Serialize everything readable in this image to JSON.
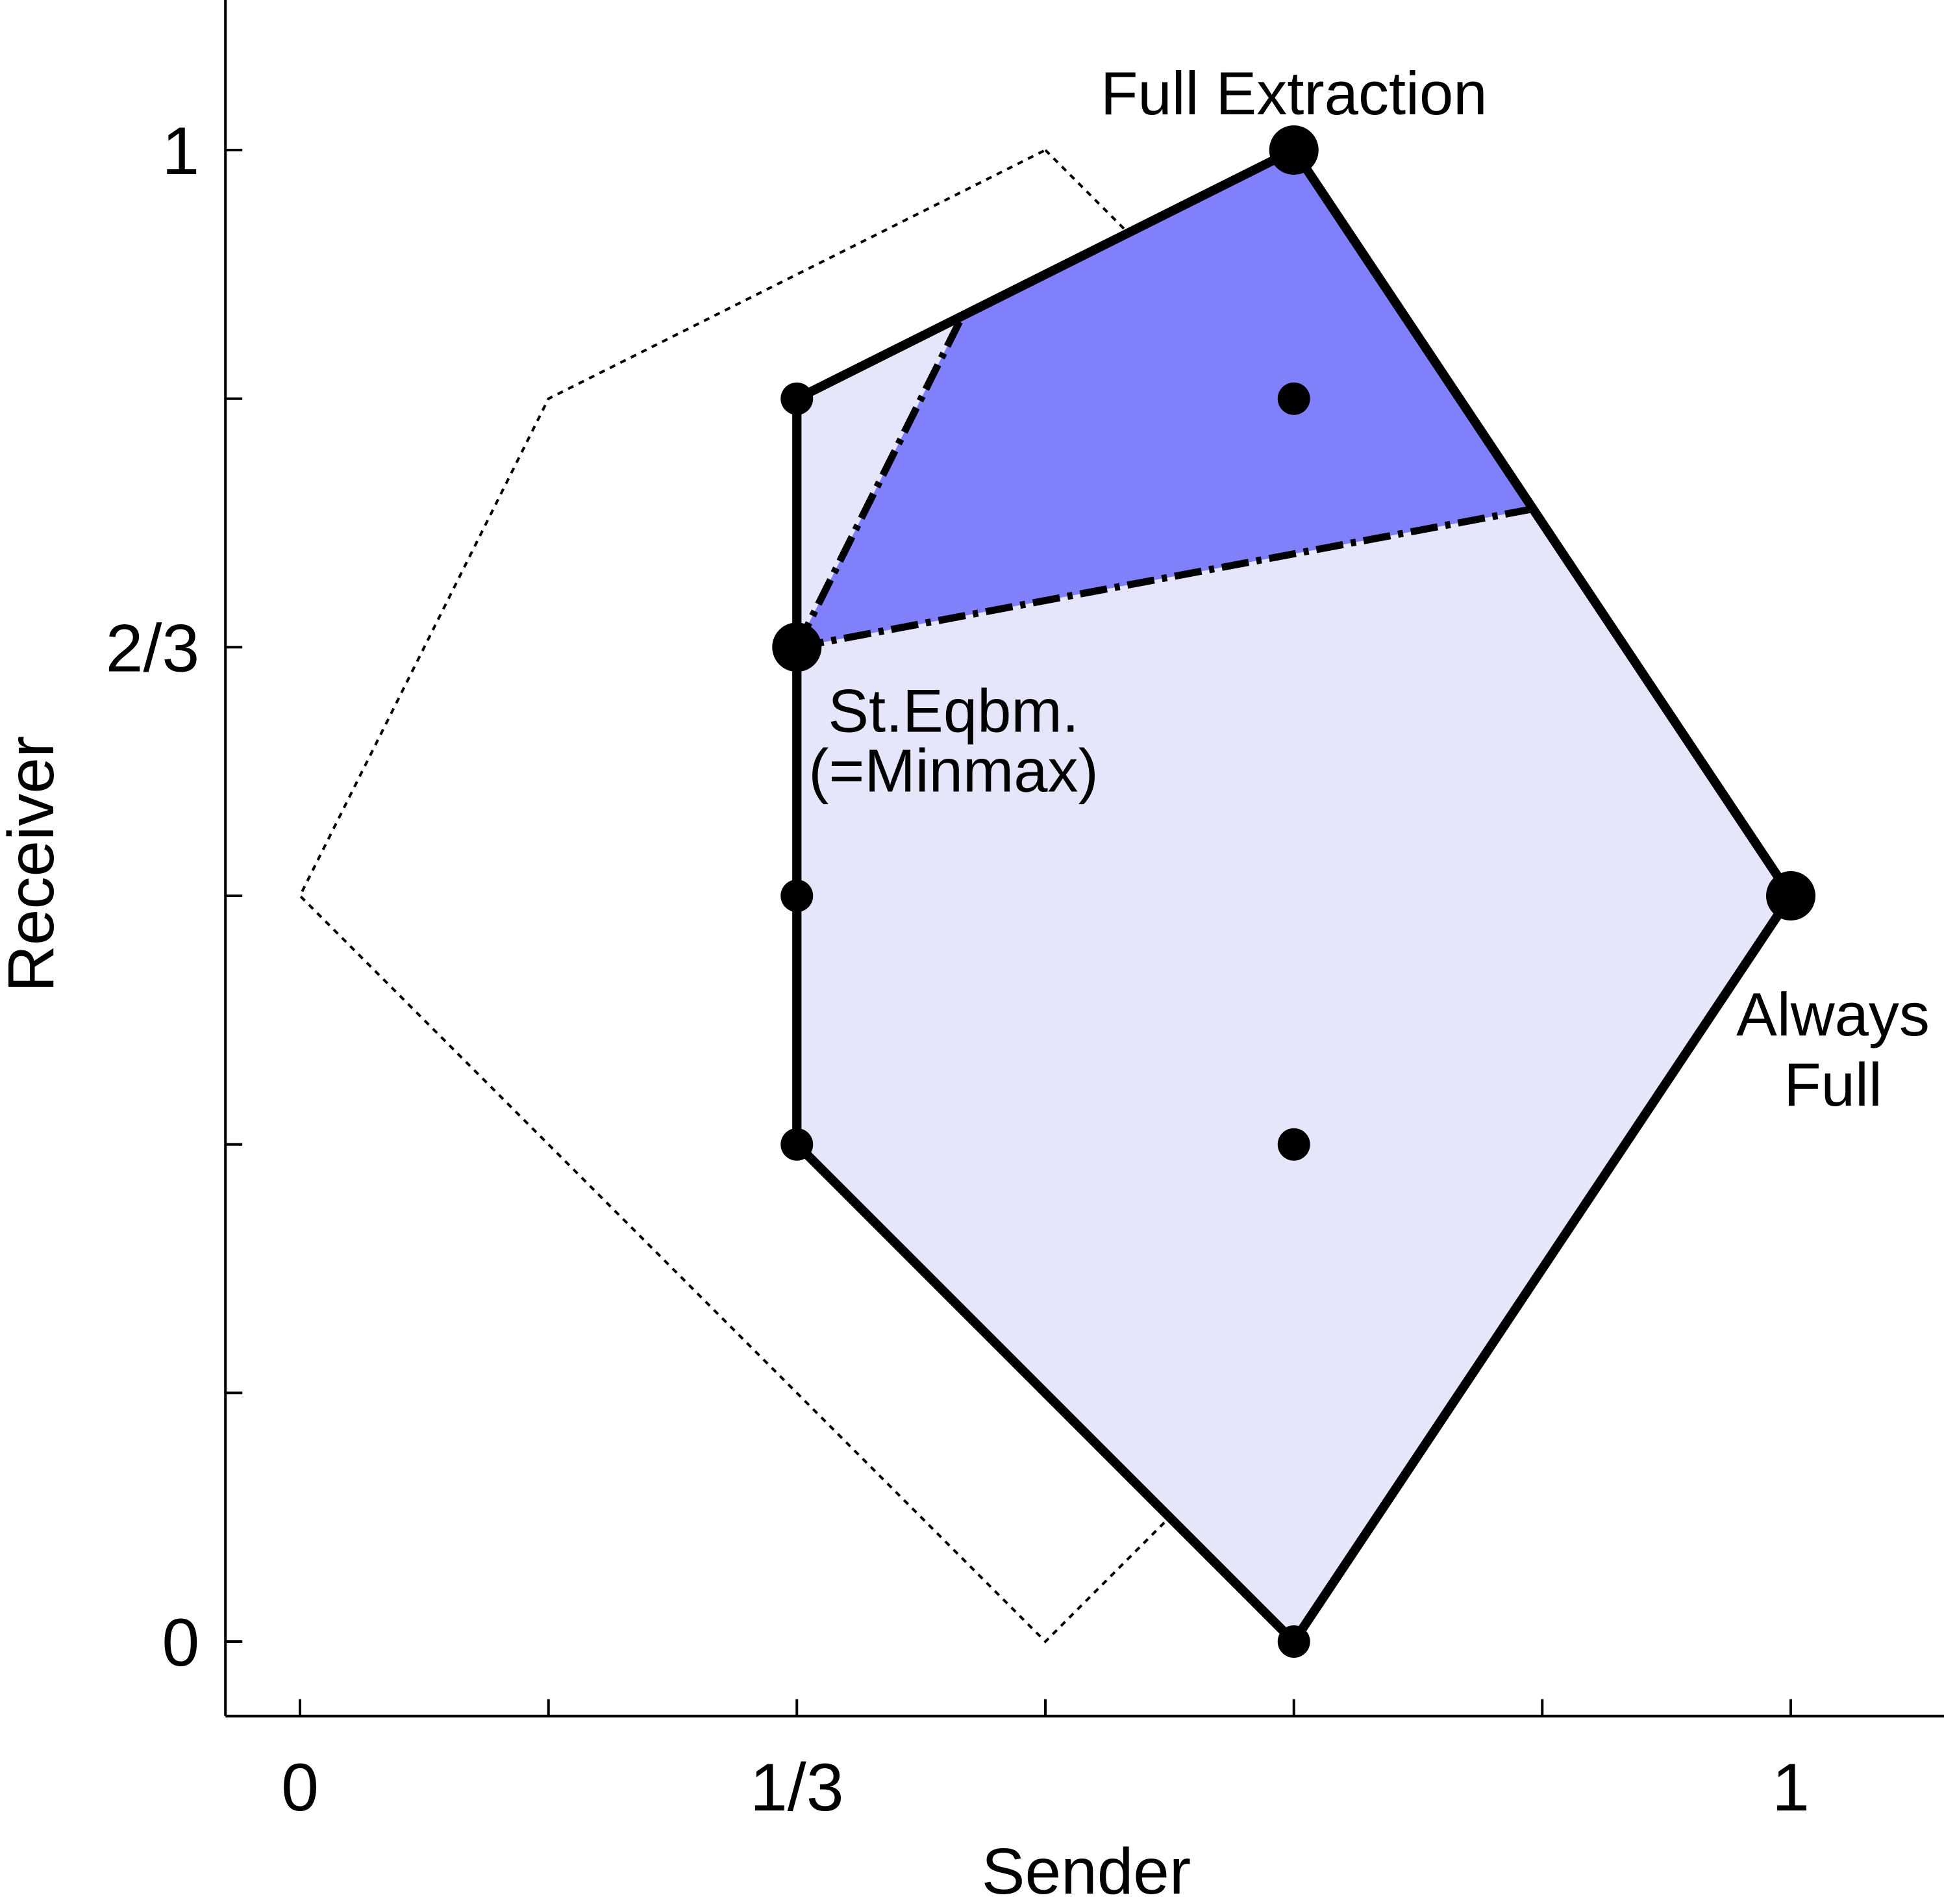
{
  "chart_data": {
    "type": "scatter",
    "xlabel": "Sender",
    "ylabel": "Receiver",
    "xlim": [
      -0.05,
      1.1
    ],
    "ylim": [
      -0.05,
      1.1
    ],
    "x_ticks": [
      0,
      0.1667,
      0.3333,
      0.5,
      0.6667,
      0.8333,
      1
    ],
    "x_tick_labels": [
      "0",
      "",
      "1/3",
      "",
      "",
      "",
      "1"
    ],
    "y_ticks": [
      0,
      0.1667,
      0.3333,
      0.5,
      0.6667,
      0.8333,
      1
    ],
    "y_tick_labels": [
      "0",
      "",
      "",
      "",
      "2/3",
      "",
      "1"
    ],
    "grid": false,
    "colors": {
      "light_fill": "#e6e6fb",
      "dark_fill": "#8080fb",
      "stroke": "#000000"
    },
    "polygons": [
      {
        "kind": "dotted-outline",
        "points": [
          [
            0.5,
            1
          ],
          [
            1,
            0.5
          ],
          [
            0.5,
            0
          ],
          [
            0,
            0.5
          ],
          [
            0.1667,
            0.8333
          ]
        ]
      },
      {
        "kind": "light-filled-region",
        "points": [
          [
            0.6667,
            1
          ],
          [
            1,
            0.5
          ],
          [
            0.6667,
            0
          ],
          [
            0.3333,
            0.3333
          ],
          [
            0.3333,
            0.8333
          ]
        ]
      },
      {
        "kind": "dark-filled-region",
        "points": [
          [
            0.3333,
            0.6667
          ],
          [
            0.4444,
            0.8889
          ],
          [
            0.6667,
            1
          ],
          [
            0.8271,
            0.7594
          ]
        ]
      }
    ],
    "dashdot_lines": [
      [
        [
          0.3333,
          0.6667
        ],
        [
          0.4444,
          0.8889
        ]
      ],
      [
        [
          0.3333,
          0.6667
        ],
        [
          0.8271,
          0.7594
        ]
      ]
    ],
    "points_small": [
      [
        0.3333,
        0.8333
      ],
      [
        0.6667,
        0.8333
      ],
      [
        0.3333,
        0.5
      ],
      [
        0.3333,
        0.3333
      ],
      [
        0.6667,
        0.3333
      ],
      [
        0.6667,
        0
      ]
    ],
    "points_large": [
      [
        0.6667,
        1
      ],
      [
        0.3333,
        0.6667
      ],
      [
        1,
        0.5
      ]
    ],
    "annotations": [
      {
        "lines": [
          "Full Extraction"
        ],
        "at": [
          0.6667,
          1
        ]
      },
      {
        "lines": [
          "St.Eqbm.",
          "(=Minmax)"
        ],
        "at": [
          0.3333,
          0.6667
        ]
      },
      {
        "lines": [
          "Always",
          "Full"
        ],
        "at": [
          1,
          0.5
        ]
      }
    ]
  }
}
